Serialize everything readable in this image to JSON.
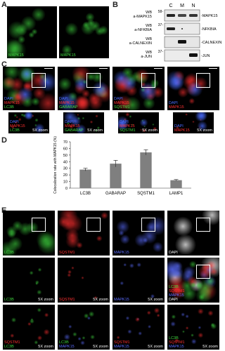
{
  "A": {
    "label": "A",
    "images": [
      {
        "channels": [
          {
            "text": "MAPK15",
            "color": "#3fd63f"
          }
        ]
      },
      {
        "channels": [
          {
            "text": "MAPK15",
            "color": "#3fd63f"
          }
        ]
      }
    ]
  },
  "B": {
    "label": "B",
    "columns": [
      "C",
      "M",
      "N"
    ],
    "rows": [
      {
        "method": "WB",
        "antibody": "a-MAPK15",
        "marker": "58-",
        "band": "-MAPK15"
      },
      {
        "method": "WB",
        "antibody": "a-NFKBIA",
        "marker": "37-",
        "band": "-NFKBIA"
      },
      {
        "method": "WB",
        "antibody": "a-CALNEXIN",
        "band": "-CALNEXIN"
      },
      {
        "method": "WB",
        "antibody": "a-JUN",
        "marker": "37-",
        "band": "-JUN"
      }
    ]
  },
  "C": {
    "label": "C",
    "zoom": "5X zoom",
    "images": [
      {
        "channels": [
          {
            "text": "DAPI",
            "color": "#4a6cff"
          },
          {
            "text": "MAPK15",
            "color": "#ff3030"
          },
          {
            "text": "LC3B",
            "color": "#3fd63f"
          }
        ]
      },
      {
        "channels": [
          {
            "text": "DAPI",
            "color": "#4a6cff"
          },
          {
            "text": "MAPK15",
            "color": "#ff3030"
          },
          {
            "text": "GABARAP",
            "color": "#3fd63f"
          }
        ]
      },
      {
        "channels": [
          {
            "text": "DAPI",
            "color": "#4a6cff"
          },
          {
            "text": "MAPK15",
            "color": "#ff3030"
          },
          {
            "text": "SQSTM1",
            "color": "#3fd63f"
          }
        ]
      },
      {
        "channels": [
          {
            "text": "DAPI",
            "color": "#4a6cff"
          },
          {
            "text": "MAPK15",
            "color": "#ff3030"
          }
        ]
      }
    ]
  },
  "D": {
    "label": "D"
  },
  "chart_data": {
    "type": "bar",
    "ylabel": "Colocalization rate with MAPK15 (%)",
    "categories": [
      "LC3B",
      "GABARAP",
      "SQSTM1",
      "LAMP1"
    ],
    "values": [
      28,
      37,
      54,
      12
    ],
    "errors": [
      2,
      5,
      4,
      1
    ],
    "color": "#7f7f7f",
    "ylim": [
      0,
      70
    ],
    "yticks": [
      0,
      10,
      20,
      30,
      40,
      50,
      60,
      70
    ]
  },
  "E": {
    "label": "E",
    "zoom": "5X zoom",
    "rows": [
      [
        {
          "channels": [
            {
              "text": "LC3B",
              "color": "#3fd63f"
            }
          ]
        },
        {
          "channels": [
            {
              "text": "SQSTM1",
              "color": "#ff3030"
            }
          ]
        },
        {
          "channels": [
            {
              "text": "MAPK15",
              "color": "#5a6cff"
            }
          ]
        },
        {
          "channels": [
            {
              "text": "DAPI",
              "color": "#ffffff"
            }
          ]
        }
      ],
      [
        {
          "channels": [
            {
              "text": "LC3B",
              "color": "#3fd63f"
            }
          ],
          "zoom": true
        },
        {
          "channels": [
            {
              "text": "SQSTM1",
              "color": "#ff3030"
            }
          ],
          "zoom": true
        },
        {
          "channels": [
            {
              "text": "MAPK15",
              "color": "#5a6cff"
            }
          ],
          "zoom": true
        },
        {
          "channels": [
            {
              "text": "LC3B",
              "color": "#3fd63f"
            },
            {
              "text": "SQSTM1",
              "color": "#ff3030"
            },
            {
              "text": "MAPK15",
              "color": "#5a6cff"
            },
            {
              "text": "DAPI",
              "color": "#ffffff"
            }
          ]
        }
      ],
      [
        {
          "channels": [
            {
              "text": "SQSTM1",
              "color": "#ff3030"
            },
            {
              "text": "LC3B",
              "color": "#3fd63f"
            }
          ],
          "zoom": true
        },
        {
          "channels": [
            {
              "text": "LC3B",
              "color": "#3fd63f"
            },
            {
              "text": "MAPK15",
              "color": "#5a6cff"
            }
          ],
          "zoom": true
        },
        {
          "channels": [
            {
              "text": "SQSTM1",
              "color": "#ff3030"
            },
            {
              "text": "MAPK15",
              "color": "#5a6cff"
            }
          ],
          "zoom": true
        },
        {
          "channels": [
            {
              "text": "LC3B",
              "color": "#3fd63f"
            },
            {
              "text": "SQSTM1",
              "color": "#ff3030"
            },
            {
              "text": "MAPK15",
              "color": "#5a6cff"
            }
          ],
          "zoom": true
        }
      ]
    ]
  }
}
